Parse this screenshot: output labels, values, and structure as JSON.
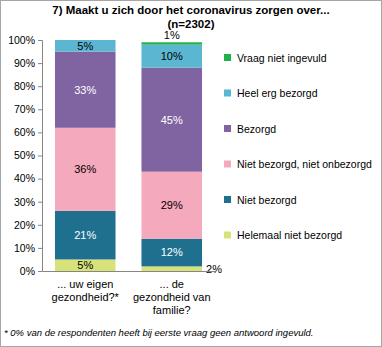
{
  "chart_data": {
    "type": "bar",
    "title": "7) Maakt u zich door het coronavirus zorgen over...",
    "subtitle": "(n=2302)",
    "categories": [
      "... uw eigen gezondheid?*",
      "... de gezondheid van familie?"
    ],
    "series": [
      {
        "name": "Helemaal niet bezorgd",
        "color": "#d7e37a",
        "values": [
          5,
          2
        ],
        "value_labels": [
          "5%",
          "2%"
        ]
      },
      {
        "name": "Niet bezorgd",
        "color": "#1f6f8f",
        "values": [
          21,
          12
        ],
        "value_labels": [
          "21%",
          "12%"
        ]
      },
      {
        "name": "Niet bezorgd, niet onbezorgd",
        "color": "#f5a9bd",
        "values": [
          36,
          29
        ],
        "value_labels": [
          "36%",
          "29%"
        ]
      },
      {
        "name": "Bezorgd",
        "color": "#8064a2",
        "values": [
          33,
          45
        ],
        "value_labels": [
          "33%",
          "45%"
        ]
      },
      {
        "name": "Heel erg bezorgd",
        "color": "#5bb6d2",
        "values": [
          5,
          10
        ],
        "value_labels": [
          "5%",
          "10%"
        ]
      },
      {
        "name": "Vraag niet ingevuld",
        "color": "#1eb04a",
        "values": [
          0,
          1
        ],
        "value_labels": [
          null,
          "1%"
        ]
      }
    ],
    "stacked": true,
    "data_labels": true,
    "legend": "right",
    "grid": false,
    "ylim": [
      0,
      100
    ],
    "yticks": [
      {
        "value": 0,
        "label": "0%"
      },
      {
        "value": 10,
        "label": "10%"
      },
      {
        "value": 20,
        "label": "20%"
      },
      {
        "value": 30,
        "label": "30%"
      },
      {
        "value": 40,
        "label": "40%"
      },
      {
        "value": 50,
        "label": "50%"
      },
      {
        "value": 60,
        "label": "60%"
      },
      {
        "value": 70,
        "label": "70%"
      },
      {
        "value": 80,
        "label": "80%"
      },
      {
        "value": 90,
        "label": "90%"
      },
      {
        "value": 100,
        "label": "100%"
      }
    ],
    "annotations": [
      "* 0% van de respondenten heeft bij eerste vraag geen antwoord ingevuld."
    ]
  }
}
